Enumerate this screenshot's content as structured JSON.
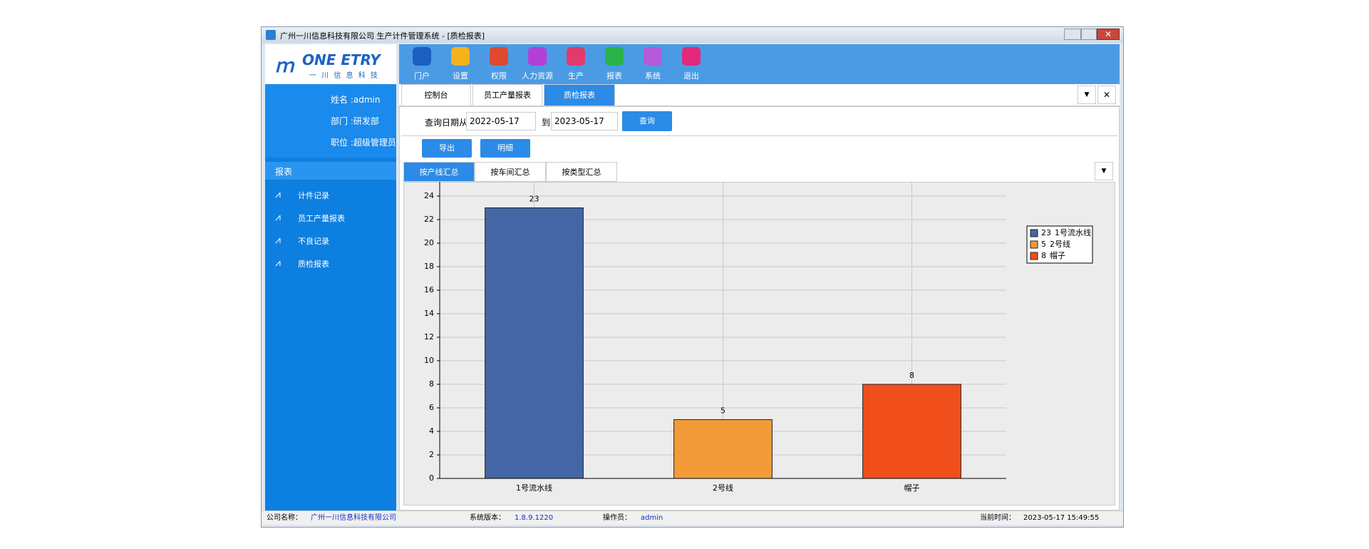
{
  "window": {
    "title": "广州一川信息科技有限公司 生产计件管理系统 - [质检报表]"
  },
  "logo": {
    "name": "ONE ETRY",
    "subtitle": "一 川 信 息 科 技"
  },
  "toolbar": [
    "门户",
    "设置",
    "权限",
    "人力资源",
    "生产",
    "报表",
    "系统",
    "退出"
  ],
  "user": {
    "name": "姓名 :admin",
    "dept": "部门 :研发部",
    "role": "职位 :超级管理员"
  },
  "menu": {
    "header": "报表",
    "items": [
      "计件记录",
      "员工产量报表",
      "不良记录",
      "质检报表"
    ]
  },
  "tabs": [
    "控制台",
    "员工产量报表",
    "质检报表"
  ],
  "query": {
    "from_label": "查询日期从",
    "from": "2022-05-17",
    "to_label": "到",
    "to": "2023-05-17",
    "button": "查询"
  },
  "buttons": [
    "导出",
    "明细"
  ],
  "subtabs": [
    "按产线汇总",
    "按车间汇总",
    "按类型汇总"
  ],
  "chart_data": {
    "type": "bar",
    "categories": [
      "1号流水线",
      "2号线",
      "帽子"
    ],
    "values": [
      23,
      5,
      8
    ],
    "colors": [
      "#4466a4",
      "#f29b38",
      "#f04e1b"
    ],
    "ylim": [
      0,
      24
    ],
    "yticks": [
      0,
      2,
      4,
      6,
      8,
      10,
      12,
      14,
      16,
      18,
      20,
      22,
      24
    ],
    "grid": true,
    "legend": "top-right"
  },
  "status": {
    "company_label": "公司名称：",
    "company": "广州一川信息科技有限公司",
    "version_label": "系统版本：",
    "version": "1.8.9.1220",
    "operator_label": "操作员：",
    "operator": "admin",
    "time_label": "当前时间：",
    "time": "2023-05-17 15:49:55"
  }
}
